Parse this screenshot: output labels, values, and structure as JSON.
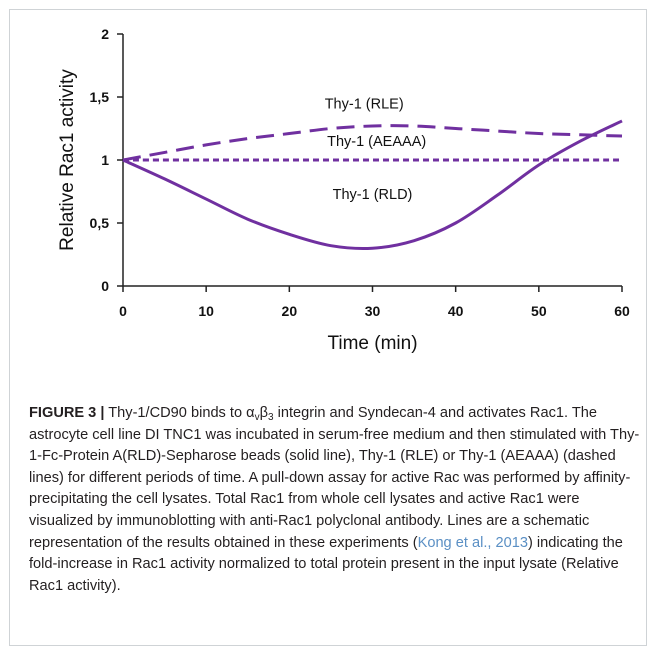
{
  "chart_data": {
    "type": "line",
    "xlabel": "Time (min)",
    "ylabel": "Relative Rac1 activity",
    "xlim": [
      0,
      60
    ],
    "ylim": [
      0,
      2
    ],
    "x_ticks": [
      "0",
      "10",
      "20",
      "30",
      "40",
      "50",
      "60"
    ],
    "y_ticks": [
      "0",
      "0,5",
      "1",
      "1,5",
      "2"
    ],
    "series": [
      {
        "name": "Thy-1 (RLE)",
        "style": "long-dashed",
        "color": "#7030a0",
        "x": [
          0,
          5,
          10,
          15,
          20,
          25,
          30,
          35,
          40,
          45,
          50,
          55,
          60
        ],
        "y": [
          1.0,
          1.06,
          1.12,
          1.17,
          1.21,
          1.25,
          1.27,
          1.27,
          1.25,
          1.23,
          1.21,
          1.2,
          1.19
        ]
      },
      {
        "name": "Thy-1 (AEAAA)",
        "style": "short-dashed",
        "color": "#7030a0",
        "x": [
          0,
          10,
          20,
          30,
          40,
          50,
          60
        ],
        "y": [
          1.0,
          1.0,
          1.0,
          1.0,
          1.0,
          1.0,
          1.0
        ]
      },
      {
        "name": "Thy-1 (RLD)",
        "style": "solid",
        "color": "#7030a0",
        "x": [
          0,
          5,
          10,
          15,
          20,
          25,
          30,
          35,
          40,
          45,
          50,
          55,
          60
        ],
        "y": [
          1.0,
          0.85,
          0.69,
          0.53,
          0.41,
          0.32,
          0.3,
          0.36,
          0.5,
          0.72,
          0.96,
          1.15,
          1.31
        ]
      }
    ],
    "grid": false,
    "legend": "inline labels"
  },
  "caption": {
    "label": "FIGURE 3 |",
    "part1": " Thy-1/CD90 binds to α",
    "sub1": "v",
    "part2": "β",
    "sub2": "3",
    "part3": " integrin and Syndecan-4 and activates Rac1. The astrocyte cell line DI TNC1 was incubated in serum-free medium and then stimulated with Thy-1-Fc-Protein A(RLD)-Sepharose beads (solid line), Thy-1 (RLE) or Thy-1 (AEAAA) (dashed lines) for different periods of time. A pull-down assay for active Rac was performed by affinity-precipitating the cell lysates. Total Rac1 from whole cell lysates and active Rac1 were visualized by immunoblotting with anti-Rac1 polyclonal antibody. Lines are a schematic representation of the results obtained in these experiments (",
    "reference": "Kong et al., 2013",
    "part4": ") indicating the fold-increase in Rac1 activity normalized to total protein present in the input lysate (Relative Rac1 activity)."
  }
}
